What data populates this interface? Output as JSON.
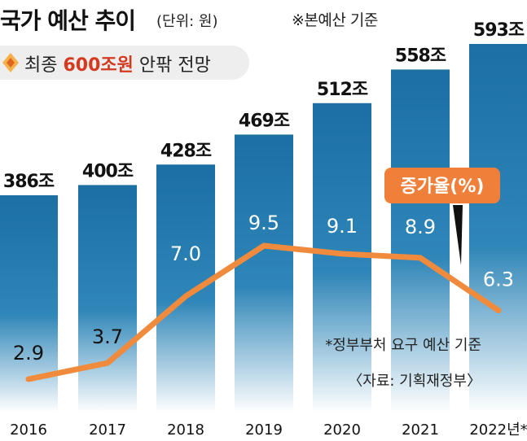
{
  "chart_data": {
    "type": "bar+line",
    "title": "국가 예산 추이",
    "unit": "(단위: 원)",
    "note": "※본예산 기준",
    "subtitle": {
      "prefix": "최종 ",
      "highlight": "600조원",
      "suffix": " 안팎 전망"
    },
    "categories": [
      "2016",
      "2017",
      "2018",
      "2019",
      "2020",
      "2021",
      "2022년*"
    ],
    "bar_values": [
      386,
      400,
      428,
      469,
      512,
      558,
      593
    ],
    "bar_labels": [
      "386조",
      "400조",
      "428조",
      "469조",
      "512조",
      "558조",
      "593조"
    ],
    "line_values": [
      2.9,
      3.7,
      7.0,
      9.5,
      9.1,
      8.9,
      6.3
    ],
    "line_labels": [
      "2.9",
      "3.7",
      "7.0",
      "9.5",
      "9.1",
      "8.9",
      "6.3"
    ],
    "line_legend": "증가율(%)",
    "footnote": "*정부부처 요구 예산 기준",
    "source": "〈자료: 기획재정부〉",
    "colors": {
      "bar_top": "#1b6fa3",
      "bar_bottom": "#ffffff",
      "line": "#f08a3c",
      "legend_bg": "#f07f3a",
      "highlight": "#d33a1f"
    }
  }
}
